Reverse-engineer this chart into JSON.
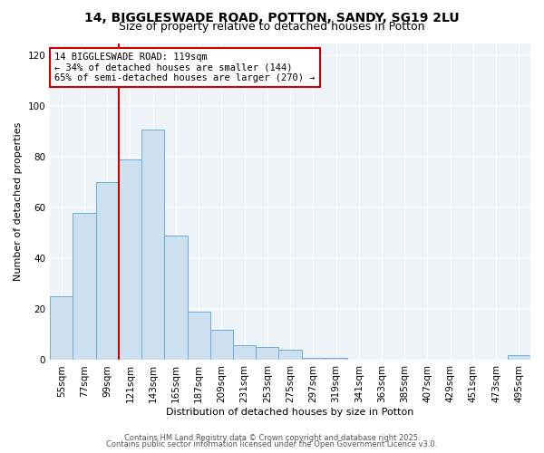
{
  "title1": "14, BIGGLESWADE ROAD, POTTON, SANDY, SG19 2LU",
  "title2": "Size of property relative to detached houses in Potton",
  "xlabel": "Distribution of detached houses by size in Potton",
  "ylabel": "Number of detached properties",
  "bar_labels": [
    "55sqm",
    "77sqm",
    "99sqm",
    "121sqm",
    "143sqm",
    "165sqm",
    "187sqm",
    "209sqm",
    "231sqm",
    "253sqm",
    "275sqm",
    "297sqm",
    "319sqm",
    "341sqm",
    "363sqm",
    "385sqm",
    "407sqm",
    "429sqm",
    "451sqm",
    "473sqm",
    "495sqm"
  ],
  "bar_values": [
    25,
    58,
    70,
    79,
    91,
    49,
    19,
    12,
    6,
    5,
    4,
    1,
    1,
    0,
    0,
    0,
    0,
    0,
    0,
    0,
    2
  ],
  "bar_color": "#cce0f0",
  "bar_edge_color": "#6aaed6",
  "vline_color": "#cc0000",
  "vline_x_index": 3,
  "annotation_text": "14 BIGGLESWADE ROAD: 119sqm\n← 34% of detached houses are smaller (144)\n65% of semi-detached houses are larger (270) →",
  "annotation_box_facecolor": "#ffffff",
  "annotation_box_edgecolor": "#cc0000",
  "ylim": [
    0,
    125
  ],
  "yticks": [
    0,
    20,
    40,
    60,
    80,
    100,
    120
  ],
  "footer1": "Contains HM Land Registry data © Crown copyright and database right 2025.",
  "footer2": "Contains public sector information licensed under the Open Government Licence v3.0.",
  "bg_color": "#ffffff",
  "plot_bg_color": "#eef3f8",
  "grid_color": "#ffffff",
  "title1_fontsize": 10,
  "title2_fontsize": 9,
  "axis_label_fontsize": 8,
  "tick_fontsize": 7.5,
  "annotation_fontsize": 7.5,
  "footer_fontsize": 6
}
